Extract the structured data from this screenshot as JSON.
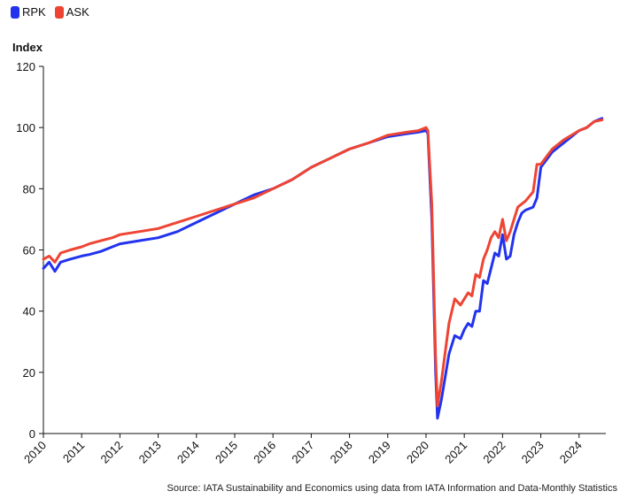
{
  "legend": [
    {
      "label": "RPK",
      "color": "#2233ee"
    },
    {
      "label": "ASK",
      "color": "#ee4433"
    }
  ],
  "source": "Source: IATA Sustainability and Economics using data from IATA Information and Data-Monthly Statistics",
  "chart_data": {
    "type": "line",
    "title": "",
    "xlabel": "",
    "ylabel": "Index",
    "xlim": [
      2010,
      2024.7
    ],
    "ylim": [
      0,
      120
    ],
    "yticks": [
      0,
      20,
      40,
      60,
      80,
      100,
      120
    ],
    "xticks": [
      "2010",
      "2011",
      "2012",
      "2013",
      "2014",
      "2015",
      "2016",
      "2017",
      "2018",
      "2019",
      "2020",
      "2021",
      "2022",
      "2023",
      "2024"
    ],
    "grid": false,
    "legend_position": "top-left",
    "series": [
      {
        "name": "RPK",
        "color": "#2233ee",
        "x": [
          2010.0,
          2010.15,
          2010.3,
          2010.45,
          2010.7,
          2011.0,
          2011.2,
          2011.5,
          2011.8,
          2012.0,
          2012.5,
          2013.0,
          2013.5,
          2014.0,
          2014.5,
          2015.0,
          2015.5,
          2016.0,
          2016.5,
          2017.0,
          2017.5,
          2018.0,
          2018.5,
          2019.0,
          2019.5,
          2019.8,
          2020.0,
          2020.05,
          2020.15,
          2020.25,
          2020.3,
          2020.4,
          2020.6,
          2020.75,
          2020.9,
          2021.0,
          2021.1,
          2021.2,
          2021.3,
          2021.4,
          2021.5,
          2021.6,
          2021.7,
          2021.8,
          2021.9,
          2022.0,
          2022.1,
          2022.2,
          2022.3,
          2022.4,
          2022.5,
          2022.6,
          2022.8,
          2022.9,
          2023.0,
          2023.3,
          2023.6,
          2024.0,
          2024.2,
          2024.4,
          2024.6
        ],
        "y": [
          54,
          56,
          53,
          56,
          57,
          58,
          58.5,
          59.5,
          61,
          62,
          63,
          64,
          66,
          69,
          72,
          75,
          78,
          80,
          83,
          87,
          90,
          93,
          95,
          97,
          98,
          98.5,
          99,
          98,
          70,
          20,
          5,
          11,
          26,
          32,
          31,
          34,
          36,
          35,
          40,
          40,
          50,
          49,
          54,
          59,
          58,
          65,
          57,
          58,
          65,
          69,
          72,
          73,
          74,
          77,
          87,
          92,
          95,
          99,
          100,
          102,
          103
        ]
      },
      {
        "name": "ASK",
        "color": "#ee4433",
        "x": [
          2010.0,
          2010.15,
          2010.3,
          2010.45,
          2010.7,
          2011.0,
          2011.2,
          2011.5,
          2011.8,
          2012.0,
          2012.5,
          2013.0,
          2013.5,
          2014.0,
          2014.5,
          2015.0,
          2015.5,
          2016.0,
          2016.5,
          2017.0,
          2017.5,
          2018.0,
          2018.5,
          2019.0,
          2019.5,
          2019.8,
          2020.0,
          2020.05,
          2020.15,
          2020.25,
          2020.3,
          2020.4,
          2020.6,
          2020.75,
          2020.9,
          2021.0,
          2021.1,
          2021.2,
          2021.3,
          2021.4,
          2021.5,
          2021.6,
          2021.7,
          2021.8,
          2021.9,
          2022.0,
          2022.1,
          2022.2,
          2022.3,
          2022.4,
          2022.5,
          2022.6,
          2022.8,
          2022.9,
          2023.0,
          2023.3,
          2023.6,
          2024.0,
          2024.2,
          2024.4,
          2024.6
        ],
        "y": [
          57,
          58,
          56,
          59,
          60,
          61,
          62,
          63,
          64,
          65,
          66,
          67,
          69,
          71,
          73,
          75,
          77,
          80,
          83,
          87,
          90,
          93,
          95,
          97.5,
          98.5,
          99,
          100,
          99,
          75,
          25,
          9,
          17,
          36,
          44,
          42,
          44,
          46,
          45,
          52,
          51,
          57,
          60,
          64,
          66,
          64,
          70,
          63,
          66,
          70,
          74,
          75,
          76,
          79,
          88,
          88,
          93,
          96,
          99,
          100,
          102,
          102.5
        ]
      }
    ]
  }
}
